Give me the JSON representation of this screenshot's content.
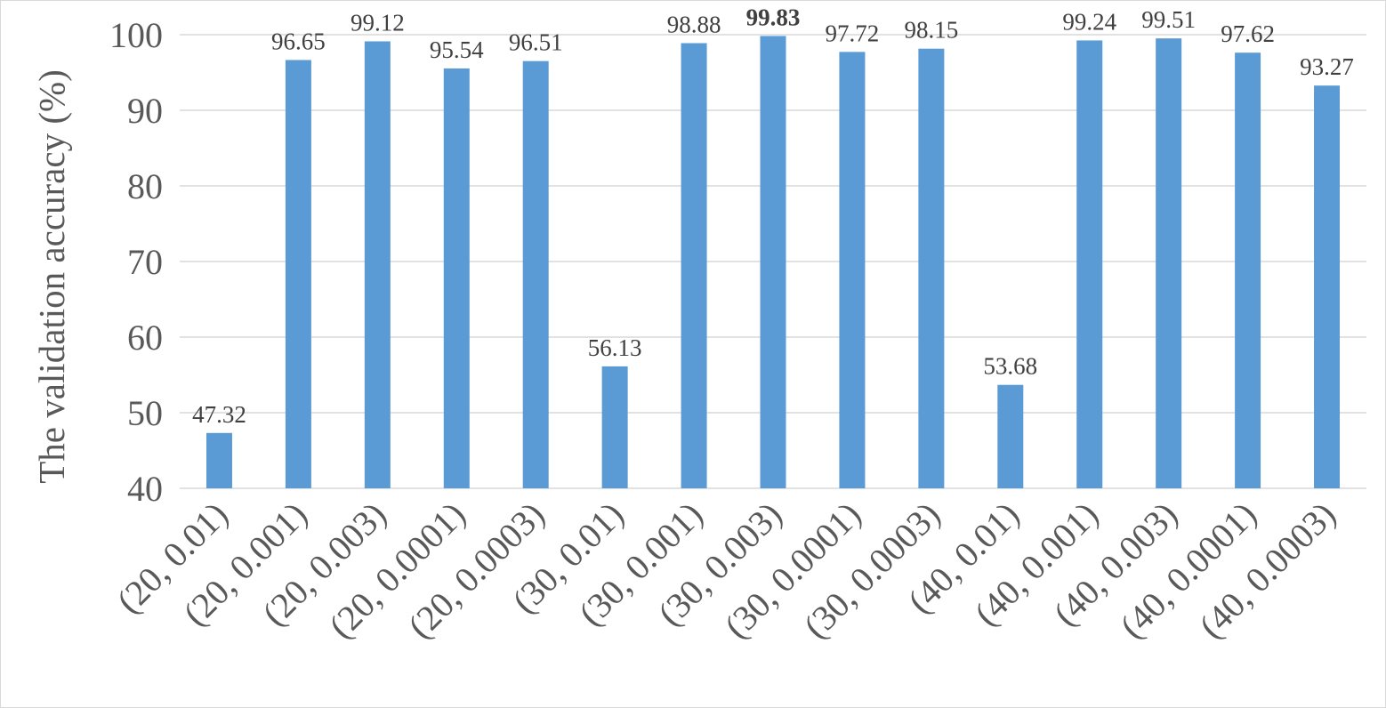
{
  "chart_data": {
    "type": "bar",
    "title": "",
    "xlabel": "",
    "ylabel": "The validation accuracy (%)",
    "ylim": [
      40,
      100
    ],
    "yticks": [
      40,
      50,
      60,
      70,
      80,
      90,
      100
    ],
    "grid": true,
    "legend": "none",
    "bar_color": "#5b9bd5",
    "categories": [
      "(20, 0.01)",
      "(20, 0.001)",
      "(20, 0.003)",
      "(20, 0.0001)",
      "(20, 0.0003)",
      "(30, 0.01)",
      "(30, 0.001)",
      "(30, 0.003)",
      "(30, 0.0001)",
      "(30, 0.0003)",
      "(40, 0.01)",
      "(40, 0.001)",
      "(40, 0.003)",
      "(40, 0.0001)",
      "(40, 0.0003)"
    ],
    "values": [
      47.32,
      96.65,
      99.12,
      95.54,
      96.51,
      56.13,
      98.88,
      99.83,
      97.72,
      98.15,
      53.68,
      99.24,
      99.51,
      97.62,
      93.27
    ],
    "data_labels": [
      "47.32",
      "96.65",
      "99.12",
      "95.54",
      "96.51",
      "56.13",
      "98.88",
      "99.83",
      "97.72",
      "98.15",
      "53.68",
      "99.24",
      "99.51",
      "97.62",
      "93.27"
    ],
    "highlighted_label": "99.83"
  }
}
